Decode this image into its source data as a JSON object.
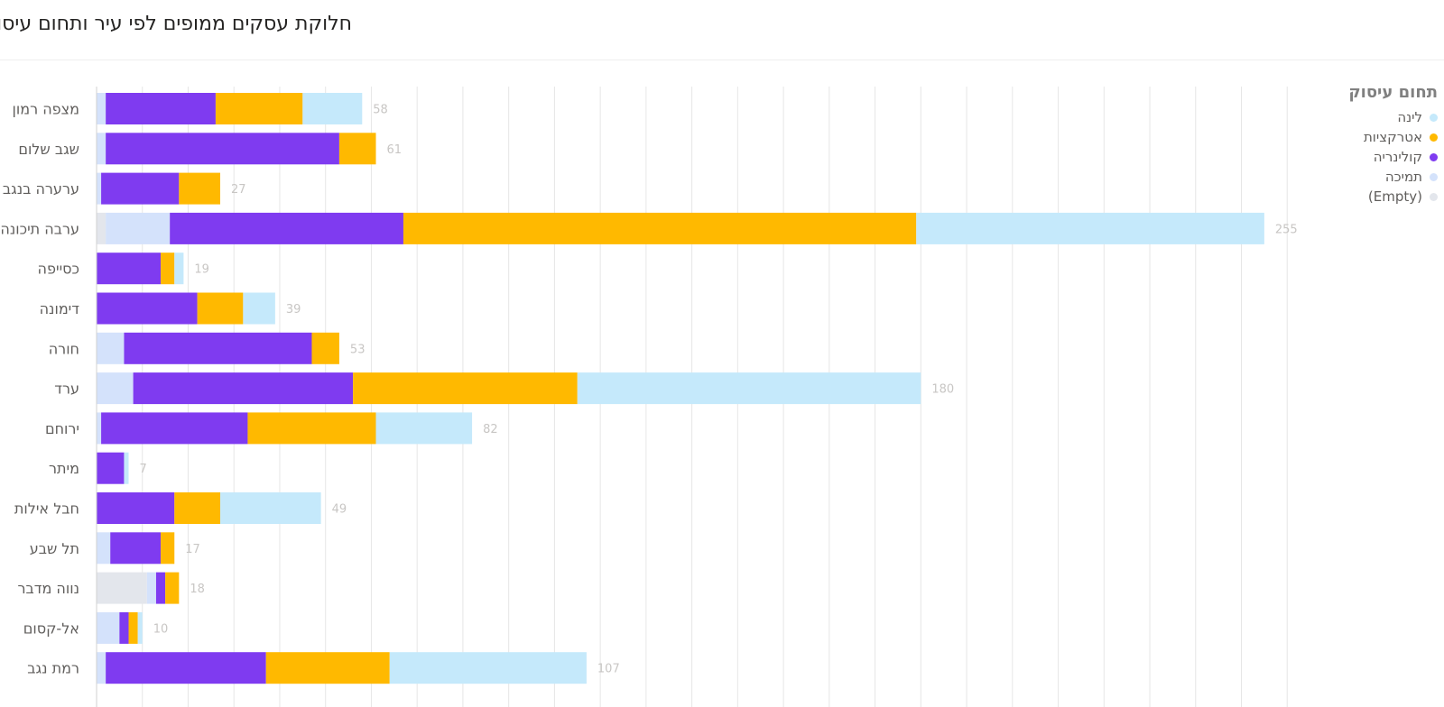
{
  "page": {
    "title": "חלוקת עסקים ממופים לפי עיר ותחום עיסוק"
  },
  "legend": {
    "title": "תחום עיסוק",
    "items": [
      {
        "label": "לינה",
        "color": "#c5e9fb"
      },
      {
        "label": "אטרקציות",
        "color": "#ffb900"
      },
      {
        "label": "קולינריה",
        "color": "#7f3bf0"
      },
      {
        "label": "תמיכה",
        "color": "#d4e2fb"
      },
      {
        "label": "(Empty)",
        "color": "#e3e6ec"
      }
    ]
  },
  "chart_data": {
    "type": "bar",
    "orientation": "horizontal",
    "stacked": true,
    "title": "חלוקת עסקים ממופים לפי עיר ותחום עיסוק",
    "legend_title": "תחום עיסוק",
    "legend_position": "top-right",
    "grid": true,
    "xlim": [
      0,
      260
    ],
    "categories": [
      "מצפה רמון",
      "שגב שלום",
      "ערערה בנגב",
      "ערבה תיכונה",
      "כסייפה",
      "דימונה",
      "חורה",
      "ערד",
      "ירוחם",
      "מיתר",
      "חבל אילות",
      "תל שבע",
      "נווה מדבר",
      "אל-קסום",
      "רמת נגב"
    ],
    "totals": [
      58,
      61,
      27,
      255,
      19,
      39,
      53,
      180,
      82,
      7,
      49,
      17,
      18,
      10,
      107
    ],
    "series": [
      {
        "name": "(Empty)",
        "color": "#e3e6ec",
        "values": [
          0,
          0,
          0,
          2,
          0,
          0,
          0,
          0,
          0,
          0,
          0,
          0,
          11,
          0,
          0
        ]
      },
      {
        "name": "תמיכה",
        "color": "#d4e2fb",
        "values": [
          2,
          2,
          1,
          14,
          0,
          0,
          6,
          8,
          1,
          0,
          0,
          3,
          2,
          5,
          2
        ]
      },
      {
        "name": "קולינריה",
        "color": "#7f3bf0",
        "values": [
          24,
          51,
          17,
          51,
          14,
          22,
          41,
          48,
          32,
          6,
          17,
          11,
          2,
          2,
          35
        ]
      },
      {
        "name": "אטרקציות",
        "color": "#ffb900",
        "values": [
          19,
          8,
          9,
          112,
          3,
          10,
          6,
          49,
          28,
          0,
          10,
          3,
          3,
          2,
          27
        ]
      },
      {
        "name": "לינה",
        "color": "#c5e9fb",
        "values": [
          13,
          0,
          0,
          76,
          2,
          7,
          0,
          75,
          21,
          1,
          22,
          0,
          0,
          1,
          43
        ]
      }
    ]
  }
}
